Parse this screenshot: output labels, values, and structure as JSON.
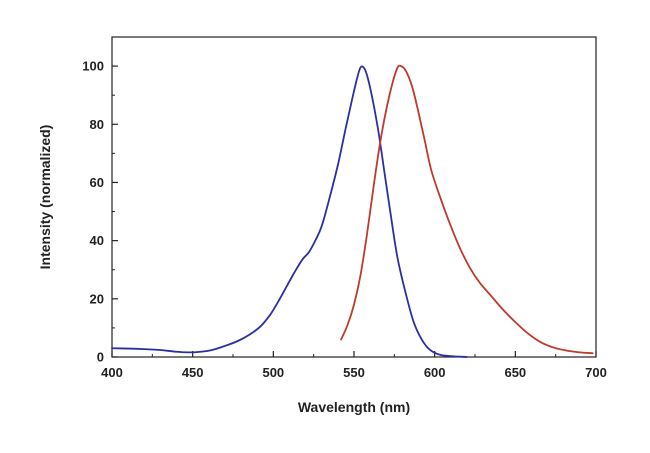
{
  "chart_data": {
    "type": "line",
    "xlabel": "Wavelength (nm)",
    "ylabel": "Intensity (normalized)",
    "xlim": [
      400,
      700
    ],
    "ylim": [
      0,
      110
    ],
    "x_ticks": [
      400,
      450,
      500,
      550,
      600,
      650,
      700
    ],
    "y_ticks": [
      0,
      20,
      40,
      60,
      80,
      100
    ],
    "grid": false,
    "series": [
      {
        "color": "#2b2fa6",
        "points": [
          [
            400,
            3
          ],
          [
            410,
            2.9
          ],
          [
            420,
            2.7
          ],
          [
            430,
            2.4
          ],
          [
            440,
            1.8
          ],
          [
            448,
            1.6
          ],
          [
            455,
            1.8
          ],
          [
            462,
            2.4
          ],
          [
            470,
            3.8
          ],
          [
            478,
            5.5
          ],
          [
            485,
            7.6
          ],
          [
            492,
            10.5
          ],
          [
            498,
            14.5
          ],
          [
            503,
            19
          ],
          [
            508,
            24
          ],
          [
            513,
            29
          ],
          [
            518,
            33.5
          ],
          [
            522,
            36
          ],
          [
            526,
            40
          ],
          [
            530,
            45
          ],
          [
            535,
            55
          ],
          [
            540,
            66
          ],
          [
            545,
            79
          ],
          [
            549,
            89
          ],
          [
            552,
            96
          ],
          [
            554,
            99.5
          ],
          [
            556,
            99.5
          ],
          [
            558,
            97
          ],
          [
            561,
            90
          ],
          [
            565,
            78
          ],
          [
            569,
            63
          ],
          [
            573,
            48
          ],
          [
            577,
            34
          ],
          [
            582,
            22
          ],
          [
            587,
            12
          ],
          [
            592,
            6
          ],
          [
            597,
            2.5
          ],
          [
            603,
            0.8
          ],
          [
            610,
            0.3
          ],
          [
            620,
            0
          ]
        ]
      },
      {
        "color": "#c0392b",
        "points": [
          [
            542,
            6
          ],
          [
            546,
            11
          ],
          [
            550,
            18
          ],
          [
            554,
            28
          ],
          [
            558,
            42
          ],
          [
            562,
            58
          ],
          [
            566,
            73
          ],
          [
            570,
            85
          ],
          [
            574,
            94.5
          ],
          [
            577,
            99.5
          ],
          [
            579,
            100
          ],
          [
            582,
            98.5
          ],
          [
            586,
            93
          ],
          [
            590,
            84
          ],
          [
            594,
            74
          ],
          [
            598,
            64
          ],
          [
            604,
            54
          ],
          [
            610,
            45
          ],
          [
            616,
            37
          ],
          [
            622,
            30.5
          ],
          [
            628,
            25.5
          ],
          [
            635,
            21
          ],
          [
            642,
            16.5
          ],
          [
            650,
            12
          ],
          [
            658,
            8
          ],
          [
            666,
            5
          ],
          [
            674,
            3.2
          ],
          [
            682,
            2.2
          ],
          [
            690,
            1.6
          ],
          [
            698,
            1.3
          ]
        ]
      }
    ]
  }
}
